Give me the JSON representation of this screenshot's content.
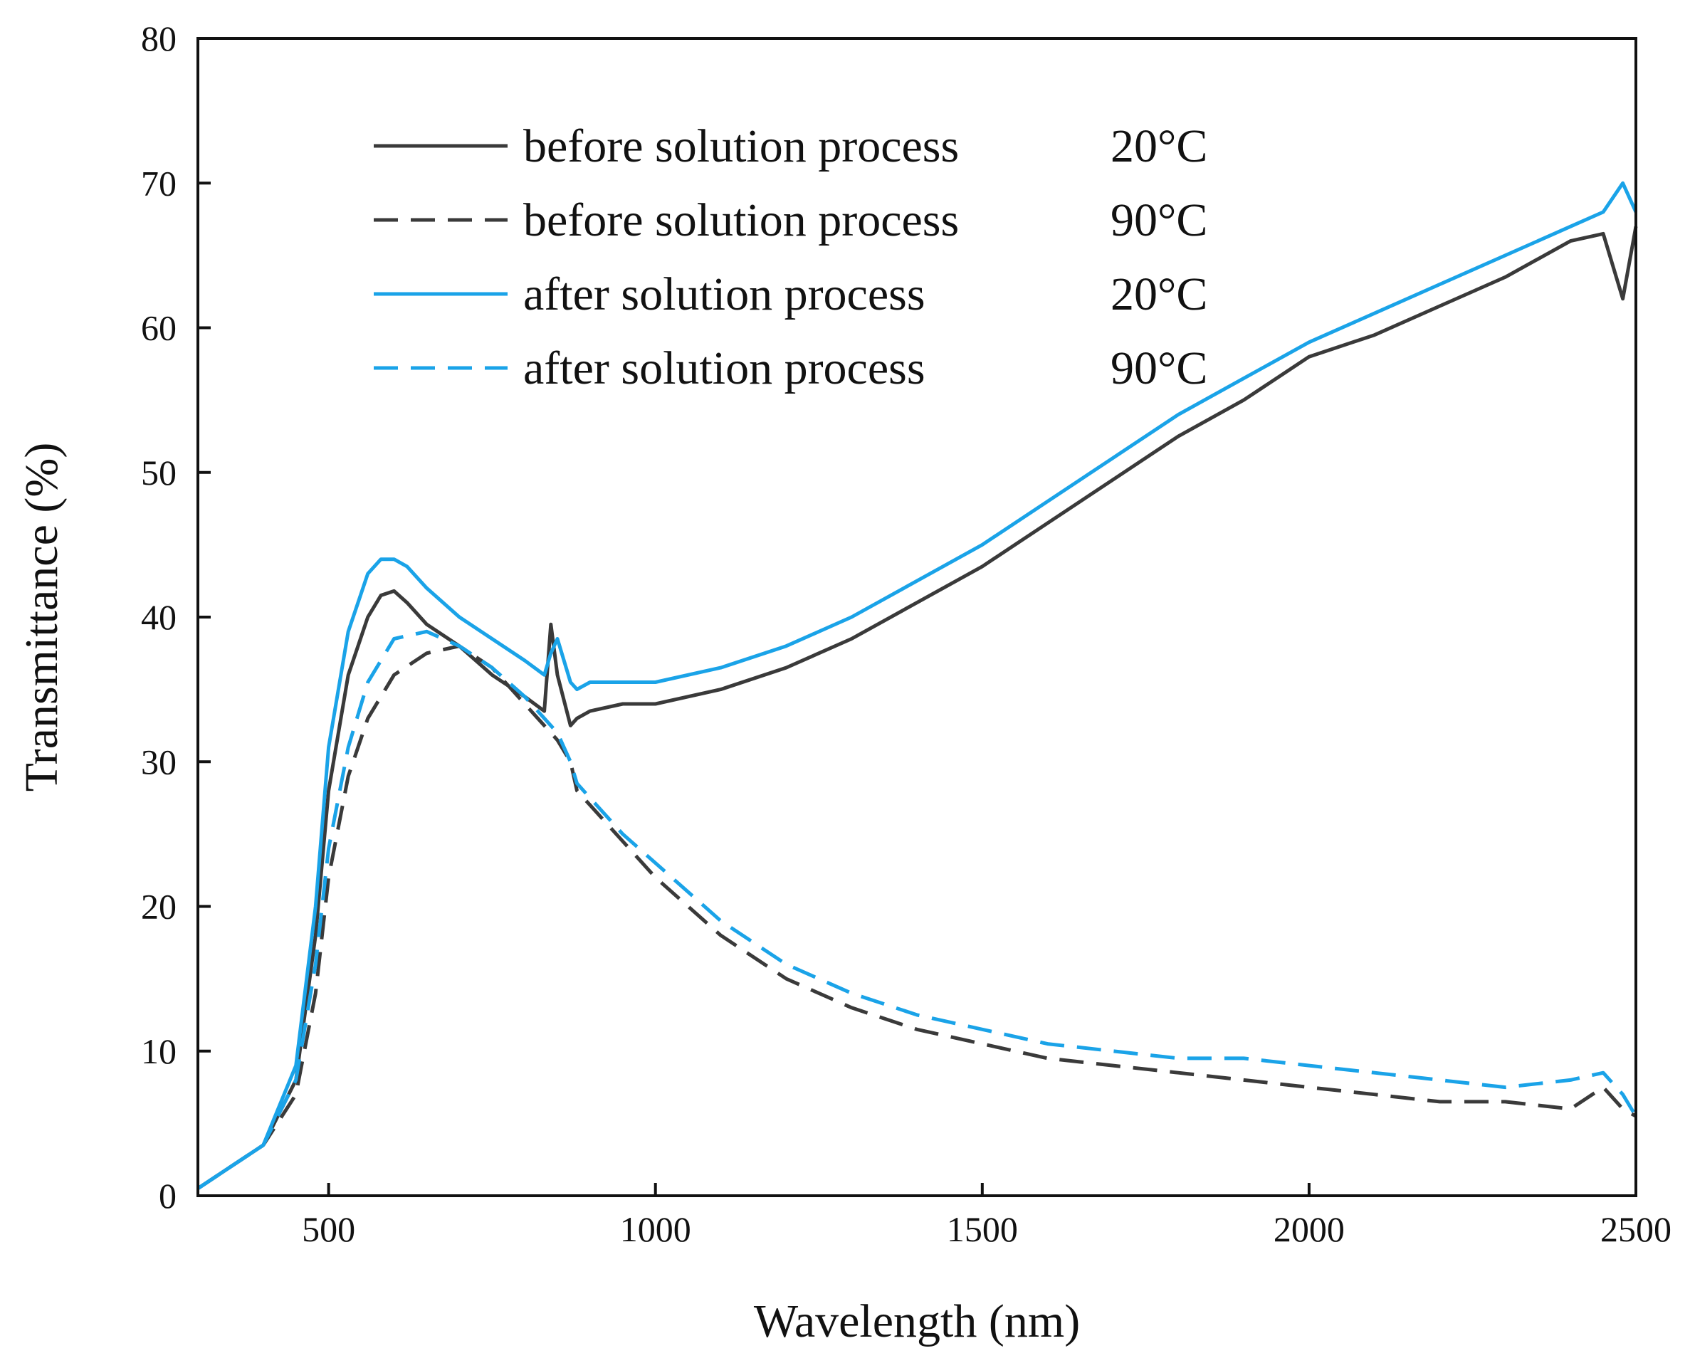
{
  "chart_data": {
    "type": "line",
    "title": "",
    "xlabel": "Wavelength (nm)",
    "ylabel": "Transmittance (%)",
    "xlim": [
      300,
      2500
    ],
    "ylim": [
      0,
      80
    ],
    "xticks": [
      500,
      1000,
      1500,
      2000,
      2500
    ],
    "yticks": [
      0,
      10,
      20,
      30,
      40,
      50,
      60,
      70,
      80
    ],
    "grid": false,
    "legend_position": "top-center",
    "colors": {
      "black": "#3a3a3a",
      "blue": "#1aa3e8"
    },
    "series": [
      {
        "name": "before solution process",
        "temp": "20°C",
        "color": "#3a3a3a",
        "dash": "solid",
        "x": [
          300,
          350,
          400,
          450,
          480,
          500,
          530,
          560,
          580,
          600,
          620,
          650,
          700,
          750,
          800,
          830,
          840,
          850,
          870,
          880,
          900,
          950,
          1000,
          1100,
          1200,
          1300,
          1400,
          1500,
          1600,
          1700,
          1800,
          1900,
          2000,
          2100,
          2200,
          2300,
          2400,
          2450,
          2480,
          2500
        ],
        "y": [
          0.5,
          2,
          3.5,
          8,
          18,
          28,
          36,
          40,
          41.5,
          41.8,
          41,
          39.5,
          38,
          36,
          34.5,
          33.5,
          39.5,
          36,
          32.5,
          33,
          33.5,
          34,
          34,
          35,
          36.5,
          38.5,
          41,
          43.5,
          46.5,
          49.5,
          52.5,
          55,
          58,
          59.5,
          61.5,
          63.5,
          66,
          66.5,
          62,
          67
        ]
      },
      {
        "name": "before solution process",
        "temp": "90°C",
        "color": "#3a3a3a",
        "dash": "dashed",
        "x": [
          300,
          350,
          400,
          450,
          480,
          500,
          530,
          560,
          600,
          650,
          700,
          750,
          800,
          850,
          870,
          880,
          900,
          950,
          1000,
          1100,
          1200,
          1300,
          1400,
          1500,
          1600,
          1700,
          1800,
          1900,
          2000,
          2100,
          2200,
          2300,
          2400,
          2450,
          2480,
          2500
        ],
        "y": [
          0.5,
          2,
          3.5,
          7,
          14,
          22,
          29,
          33,
          36,
          37.5,
          38,
          36.5,
          34,
          31.5,
          30,
          28,
          27,
          24.5,
          22,
          18,
          15,
          13,
          11.5,
          10.5,
          9.5,
          9,
          8.5,
          8,
          7.5,
          7,
          6.5,
          6.5,
          6,
          7.5,
          6,
          5.5
        ]
      },
      {
        "name": "after solution process",
        "temp": "20°C",
        "color": "#1aa3e8",
        "dash": "solid",
        "x": [
          300,
          350,
          400,
          450,
          480,
          500,
          530,
          560,
          580,
          600,
          620,
          650,
          700,
          750,
          800,
          830,
          840,
          850,
          870,
          880,
          900,
          950,
          1000,
          1100,
          1200,
          1300,
          1400,
          1500,
          1600,
          1700,
          1800,
          1900,
          2000,
          2100,
          2200,
          2300,
          2400,
          2450,
          2480,
          2500
        ],
        "y": [
          0.5,
          2,
          3.5,
          9,
          20,
          31,
          39,
          43,
          44,
          44,
          43.5,
          42,
          40,
          38.5,
          37,
          36,
          37.5,
          38.5,
          35.5,
          35,
          35.5,
          35.5,
          35.5,
          36.5,
          38,
          40,
          42.5,
          45,
          48,
          51,
          54,
          56.5,
          59,
          61,
          63,
          65,
          67,
          68,
          70,
          68
        ]
      },
      {
        "name": "after solution process",
        "temp": "90°C",
        "color": "#1aa3e8",
        "dash": "dashed",
        "x": [
          300,
          350,
          400,
          450,
          480,
          500,
          530,
          560,
          600,
          650,
          700,
          750,
          800,
          850,
          870,
          880,
          900,
          950,
          1000,
          1100,
          1200,
          1300,
          1400,
          1500,
          1600,
          1700,
          1800,
          1900,
          2000,
          2100,
          2200,
          2300,
          2400,
          2450,
          2480,
          2500
        ],
        "y": [
          0.5,
          2,
          3.5,
          8,
          16,
          24,
          31,
          35.5,
          38.5,
          39,
          38,
          36.5,
          34.5,
          32,
          30,
          28.5,
          27.5,
          25,
          23,
          19,
          16,
          14,
          12.5,
          11.5,
          10.5,
          10,
          9.5,
          9.5,
          9,
          8.5,
          8,
          7.5,
          8,
          8.5,
          7,
          5.5
        ]
      }
    ]
  }
}
